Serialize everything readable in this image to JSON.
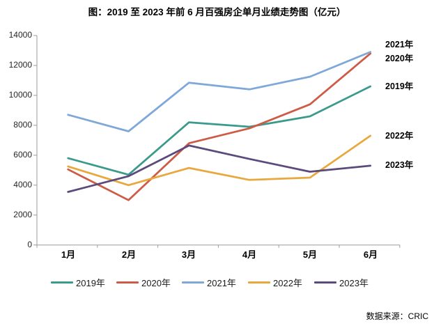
{
  "title": "图：2019 至 2023 年前 6 月百强房企单月业绩走势图（亿元）",
  "source": "数据来源：CRIC",
  "chart_data": {
    "type": "line",
    "title": "图：2019 至 2023 年前 6 月百强房企单月业绩走势图（亿元）",
    "unit": "亿元",
    "categories": [
      "1月",
      "2月",
      "3月",
      "4月",
      "5月",
      "6月"
    ],
    "ylim": [
      0,
      14000
    ],
    "ytick_step": 2000,
    "ytick_labels": [
      "14000",
      "12000",
      "10000",
      "8000",
      "6000",
      "4000",
      "2000",
      "0"
    ],
    "grid": false,
    "legend_position": "bottom",
    "axis_color": "#9b9b9b",
    "series": [
      {
        "name": "2019年",
        "color": "#3a9a8c",
        "values": [
          5800,
          4700,
          8200,
          7900,
          8600,
          10600
        ]
      },
      {
        "name": "2020年",
        "color": "#ce5b45",
        "values": [
          5050,
          3000,
          6800,
          7800,
          9400,
          12800
        ]
      },
      {
        "name": "2021年",
        "color": "#7fa8d9",
        "values": [
          8700,
          7600,
          10850,
          10400,
          11250,
          12900
        ]
      },
      {
        "name": "2022年",
        "color": "#e9a83d",
        "values": [
          5250,
          4000,
          5150,
          4350,
          4500,
          7300
        ]
      },
      {
        "name": "2023年",
        "color": "#5b4a7c",
        "values": [
          3550,
          4600,
          6650,
          5750,
          4900,
          5300
        ]
      }
    ],
    "end_labels": [
      "2021年",
      "2020年",
      "2019年",
      "2022年",
      "2023年"
    ]
  }
}
